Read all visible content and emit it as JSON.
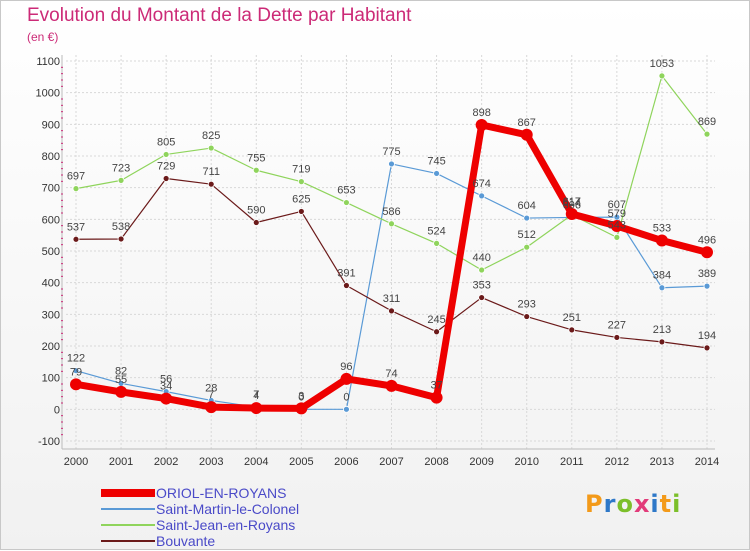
{
  "title": "Evolution du Montant de la Dette par Habitant",
  "unit_label": "(en €)",
  "logo": {
    "text": "Proxiti",
    "letters": [
      {
        "ch": "P",
        "color": "#f39a1a"
      },
      {
        "ch": "r",
        "color": "#2e78c8"
      },
      {
        "ch": "o",
        "color": "#7cbf2a"
      },
      {
        "ch": "x",
        "color": "#e23b7a"
      },
      {
        "ch": "i",
        "color": "#2e78c8"
      },
      {
        "ch": "t",
        "color": "#f39a1a"
      },
      {
        "ch": "i",
        "color": "#7cbf2a"
      }
    ]
  },
  "chart_data": {
    "type": "line",
    "x": [
      "2000",
      "2001",
      "2002",
      "2003",
      "2004",
      "2005",
      "2006",
      "2007",
      "2008",
      "2009",
      "2010",
      "2011",
      "2012",
      "2013",
      "2014"
    ],
    "ylim": [
      -100,
      1100
    ],
    "yticks": [
      -100,
      0,
      100,
      200,
      300,
      400,
      500,
      600,
      700,
      800,
      900,
      1000,
      1100
    ],
    "grid": true,
    "legend_position": "bottom-left",
    "series": [
      {
        "name": "ORIOL-EN-ROYANS",
        "color": "#ee0000",
        "width": 7,
        "marker": 6,
        "values": [
          79,
          55,
          34,
          7,
          4,
          3,
          96,
          74,
          37,
          898,
          867,
          617,
          579,
          533,
          496
        ],
        "labels": [
          "79",
          "55",
          "34",
          "7",
          "4",
          "3",
          "96",
          "74",
          "37",
          "898",
          "867",
          "617",
          "579",
          "533",
          "496"
        ]
      },
      {
        "name": "Saint-Martin-le-Colonel",
        "color": "#5a9ad6",
        "width": 1.2,
        "marker": 3,
        "values": [
          122,
          82,
          56,
          28,
          7,
          0,
          0,
          775,
          745,
          674,
          604,
          606,
          607,
          384,
          389
        ],
        "labels": [
          "122",
          "82",
          "56",
          "28",
          "7",
          "0",
          "0",
          "775",
          "745",
          "674",
          "604",
          "606",
          "607",
          "384",
          "389"
        ]
      },
      {
        "name": "Saint-Jean-en-Royans",
        "color": "#8fd45c",
        "width": 1.2,
        "marker": 3,
        "values": [
          697,
          723,
          805,
          825,
          755,
          719,
          653,
          586,
          524,
          440,
          512,
          614,
          543,
          1053,
          869
        ],
        "labels": [
          "697",
          "723",
          "805",
          "825",
          "755",
          "719",
          "653",
          "586",
          "524",
          "440",
          "512",
          "614",
          "543",
          "1053",
          "869"
        ]
      },
      {
        "name": "Bouvante",
        "color": "#6b1a1a",
        "width": 1.2,
        "marker": 3,
        "values": [
          537,
          538,
          729,
          711,
          590,
          625,
          391,
          311,
          245,
          353,
          293,
          251,
          227,
          213,
          194
        ],
        "labels": [
          "537",
          "538",
          "729",
          "711",
          "590",
          "625",
          "391",
          "311",
          "245",
          "353",
          "293",
          "251",
          "227",
          "213",
          "194"
        ]
      }
    ]
  }
}
